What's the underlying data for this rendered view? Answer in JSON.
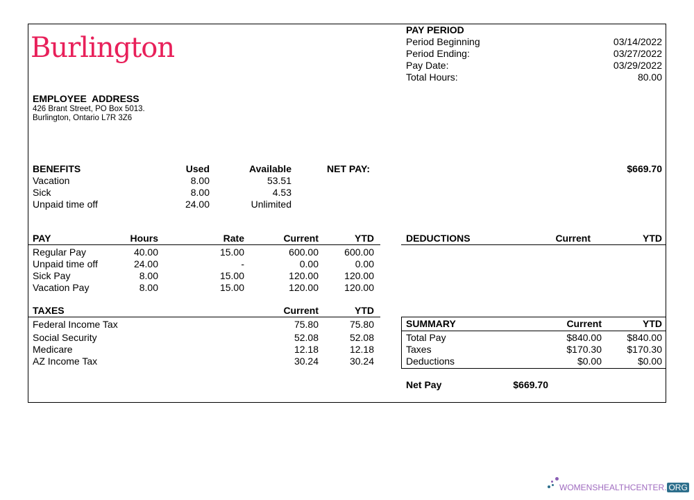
{
  "logo": {
    "text": "Burlington",
    "color": "#e8205a"
  },
  "pay_period": {
    "title": "PAY PERIOD",
    "rows": [
      {
        "label": "Period Beginning",
        "value": "03/14/2022"
      },
      {
        "label": "Period Ending:",
        "value": "03/27/2022"
      },
      {
        "label": "Pay Date:",
        "value": "03/29/2022"
      },
      {
        "label": "Total Hours:",
        "value": "80.00"
      }
    ]
  },
  "address": {
    "title": "EMPLOYEE  ADDRESS",
    "line1": "426 Brant Street, PO Box 5013.",
    "line2": "Burlington, Ontario L7R 3Z6"
  },
  "benefits": {
    "headers": [
      "BENEFITS",
      "Used",
      "Available"
    ],
    "rows": [
      [
        "Vacation",
        "8.00",
        "53.51"
      ],
      [
        "Sick",
        "8.00",
        "4.53"
      ],
      [
        "Unpaid time off",
        "24.00",
        "Unlimited"
      ]
    ]
  },
  "net_pay": {
    "label": "NET PAY:",
    "value": "$669.70"
  },
  "pay": {
    "headers": [
      "PAY",
      "Hours",
      "Rate",
      "Current",
      "YTD"
    ],
    "rows": [
      [
        "Regular Pay",
        "40.00",
        "15.00",
        "600.00",
        "600.00"
      ],
      [
        "Unpaid time off",
        "24.00",
        "-",
        "0.00",
        "0.00"
      ],
      [
        "Sick Pay",
        "8.00",
        "15.00",
        "120.00",
        "120.00"
      ],
      [
        "Vacation  Pay",
        "8.00",
        "15.00",
        "120.00",
        "120.00"
      ]
    ]
  },
  "deductions": {
    "headers": [
      "DEDUCTIONS",
      "Current",
      "YTD"
    ]
  },
  "taxes": {
    "headers": [
      "TAXES",
      "Current",
      "YTD"
    ],
    "rows": [
      [
        "Federal Income Tax",
        "75.80",
        "75.80"
      ],
      [
        "Social Security",
        "52.08",
        "52.08"
      ],
      [
        "Medicare",
        "12.18",
        "12.18"
      ],
      [
        "AZ Income Tax",
        "30.24",
        "30.24"
      ]
    ]
  },
  "summary": {
    "headers": [
      "SUMMARY",
      "Current",
      "YTD"
    ],
    "rows": [
      [
        "Total Pay",
        "$840.00",
        "$840.00"
      ],
      [
        "Taxes",
        "$170.30",
        "$170.30"
      ],
      [
        "Deductions",
        "$0.00",
        "$0.00"
      ]
    ],
    "net_label": "Net Pay",
    "net_value": "$669.70"
  },
  "watermark": {
    "text": "WOMENSHEALTHCENTER.",
    "suffix": "ORG"
  }
}
